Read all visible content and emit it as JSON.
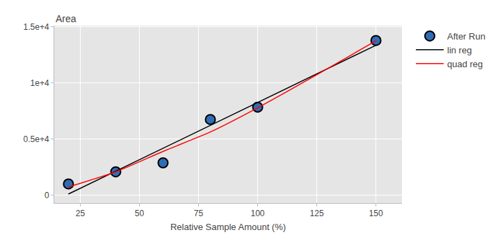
{
  "chart_data": {
    "type": "scatter",
    "x_label": "Relative Sample Amount (%)",
    "y_label": "Area",
    "xlim": [
      14,
      161
    ],
    "ylim": [
      -700,
      15100
    ],
    "xticks": [
      25,
      50,
      75,
      100,
      125,
      150
    ],
    "yticks": [
      0,
      {
        "value": 5000,
        "label": "0.5e+4"
      },
      {
        "value": 10000,
        "label": "1e+4"
      },
      {
        "value": 15000,
        "label": "1.5e+4"
      }
    ],
    "grid": true,
    "legend": "upper right",
    "series": [
      {
        "name": "After Run",
        "type": "scatter",
        "marker": "circle",
        "color": "#2f6eb5",
        "x": [
          20,
          40,
          60,
          80,
          100,
          150
        ],
        "values": [
          1000,
          2080,
          2880,
          6740,
          7840,
          13780
        ]
      },
      {
        "name": "lin reg",
        "type": "line",
        "line_style": "solid",
        "color": "#000000",
        "x": [
          20,
          150
        ],
        "values": [
          100,
          13350
        ]
      },
      {
        "name": "quad reg",
        "type": "line",
        "line_style": "solid",
        "color": "#ff0000",
        "x": [
          20,
          40,
          60,
          80,
          100,
          125,
          150
        ],
        "values": [
          730,
          2080,
          3900,
          5630,
          7780,
          10720,
          13750
        ]
      }
    ]
  }
}
